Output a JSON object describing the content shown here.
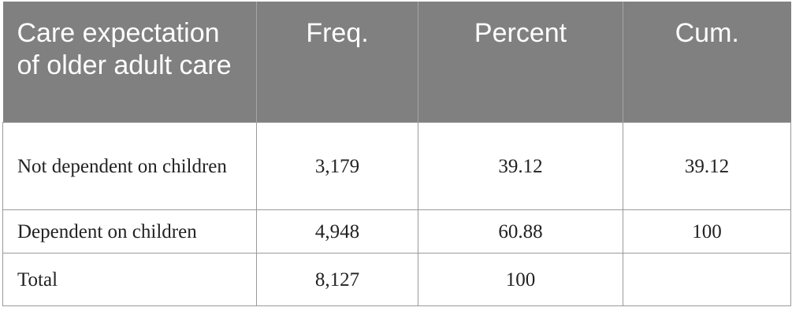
{
  "table": {
    "headers": [
      "Care expectation of older adult care",
      "Freq.",
      "Percent",
      "Cum."
    ],
    "rows": [
      [
        "Not dependent on children",
        "3,179",
        "39.12",
        "39.12"
      ],
      [
        "Dependent on children",
        "4,948",
        "60.88",
        "100"
      ],
      [
        "Total",
        "8,127",
        "100"
      ]
    ]
  }
}
